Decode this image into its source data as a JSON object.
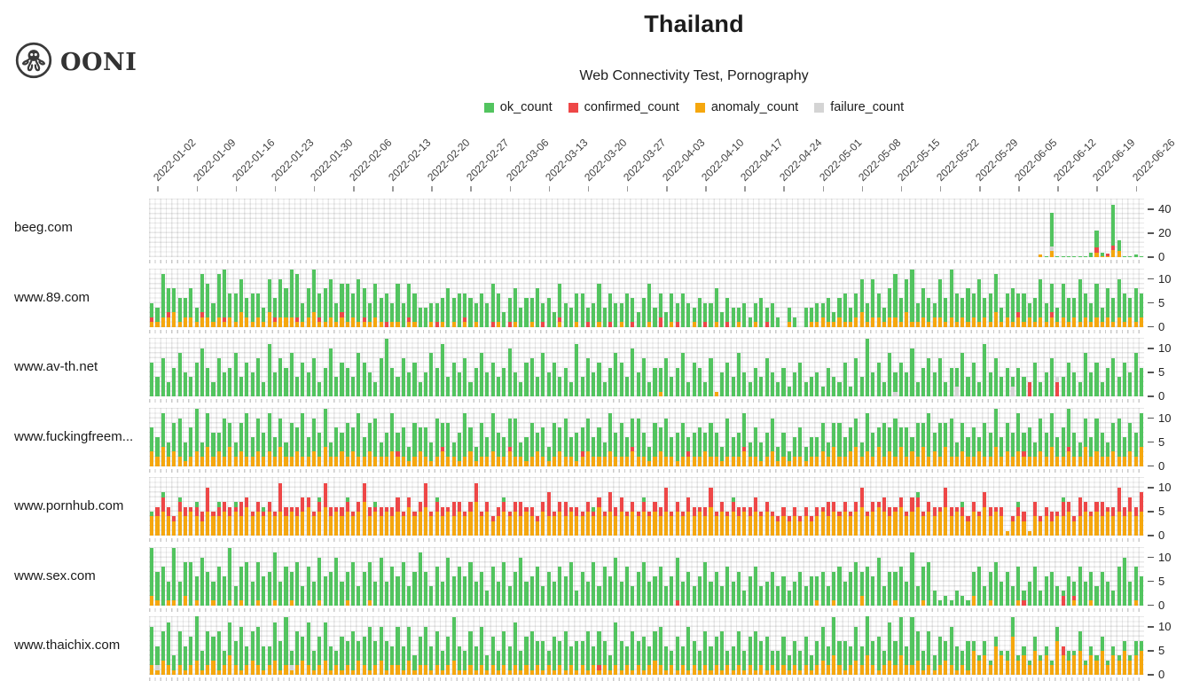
{
  "brand": {
    "logo_text": "OONI"
  },
  "header": {
    "title": "Thailand",
    "subtitle": "Web Connectivity Test, Pornography"
  },
  "legend": [
    {
      "label": "ok_count",
      "color": "#52c45f"
    },
    {
      "label": "confirmed_count",
      "color": "#ee4747"
    },
    {
      "label": "anomaly_count",
      "color": "#f5a70e"
    },
    {
      "label": "failure_count",
      "color": "#d4d4d4"
    }
  ],
  "chart_data": {
    "type": "stacked_bar",
    "title": "Thailand",
    "subtitle": "Web Connectivity Test, Pornography",
    "x_start_date": "2022-01-01",
    "x_granularity": "daily",
    "x_tick_labels": [
      "2022-01-02",
      "2022-01-09",
      "2022-01-16",
      "2022-01-23",
      "2022-01-30",
      "2022-02-06",
      "2022-02-13",
      "2022-02-20",
      "2022-02-27",
      "2022-03-06",
      "2022-03-13",
      "2022-03-20",
      "2022-03-27",
      "2022-04-03",
      "2022-04-10",
      "2022-04-17",
      "2022-04-24",
      "2022-05-01",
      "2022-05-08",
      "2022-05-15",
      "2022-05-22",
      "2022-05-29",
      "2022-06-05",
      "2022-06-12",
      "2022-06-19",
      "2022-06-26"
    ],
    "series_names": [
      "ok_count",
      "confirmed_count",
      "anomaly_count",
      "failure_count"
    ],
    "stack_order_bottom_to_top": [
      "anomaly_count",
      "confirmed_count",
      "failure_count",
      "ok_count"
    ],
    "colors": {
      "ok": "#52c45f",
      "confirmed": "#ee4747",
      "anomaly": "#f5a70e",
      "failure": "#d4d4d4"
    },
    "day_format": "per-day 'ok,confirmed,anomaly,failure' separated by ';' — empty segment = no measurements",
    "sites": [
      {
        "name": "beeg.com",
        "y_ticks": [
          0,
          20,
          40
        ],
        "offset": 159,
        "days": "0,0,2;1;28,0,5,4;1;1;1;1;1;1;4;14,4,4;3,0,1;0,2,1;34,4,6;9,0,5;1;1;2;1"
      },
      {
        "name": "www.89.com",
        "y_ticks": [
          0,
          5,
          10
        ],
        "days": "3,1,1;3,0,1;9,0,2;5,1,2;5,0,3;5,0,1;4,0,2;6,0,2;3,0,1;8,1,2;7,0,2;4,0,1;9,0,2;10,1,1;5,0,2;6,0,1;7,0,3;4,0,2;6,0,1;5,0,2;3,0,1;7,0,3;4,1,1;8,0,2;6,0,2;10,0,2;9,1,1;4,0,1;6,0,2;9,0,3;5,1,1;7,0,1;8,0,2;4,0,1;6,1,2;8,0,1;5,0,2;9,0,1;6,1,1;4,0,1;7,0,2;5,0,1;6,1;4,0,1;8,0,1;5;7,1,1;6,0,1;4;4;4,0,1;4,1;5,0,1;8;5,0,1;7;5,1,1;6;4,0,1;7;5;8,1;6,0,1;3;5,1;7,0,1;4;6;5,0,1;8;4,1;6;3;7,1,1;5;4;6,0,1;7;3,1;5;8,0,1;4;6,1;5;4,0,1;7;5,1;3;6;8,0,1;4;5,2;3;6,0,1;4,1;7;5;3,0,1;6;4,1;5;7,0,1;3;5,1;4;3,0,1;5;2;4,0,1;6;3,1;5;2;;3,0,1;2;;4;3,0,1;4,0,1;3,0,2;5,0,1;2,0,1;4,0,2;6,0,1;3,0,1;5,0,2;7,0,3;4,0,1;8,0,2;5,0,2;3,0,1;6,0,2;9,0,2;5,0,1;7,0,3;11,0,1;4,0,1;6,0,2;5,0,1;3,0,2;8,0,2;5,0,1;10,0,2;6,0,1;4,0,2;7,0,1;5,0,2;9,0,1;4,0,2;6,0,1;8,0,3;3,0,1;5,0,2;7,0,1;4,1,2;6,0,1;3,0,2;5,0,1;8,0,2;4,0,1;6,1,2;3,0,1;7,0,2;5,0,1;4,0,2;9,0,1;5,0,2;4,0,1;7,0,2;3,0,1;6,0,2;5,0,1;8,0,2;6,0,1;4,0,2;7,0,1;5,0,2"
      },
      {
        "name": "www.av-th.net",
        "y_ticks": [
          0,
          5,
          10
        ],
        "days": "7;4;8;3;6;9;5;4;7;10;6;3;8;5;6;9;4;7;5;8;3;11;5;8;6;9;4;7;5;8;3;6;10;4;7;6;4;9;7;5;3;8;12;6;4;8;5;7;3;5;9;6;11;4;7;5;8;3;6;9;5;7;4;6;10;5;3;7;8;4;9;5;7;4;6;3;11;4;8;5;7;3;6;9;7;4;10;5;8;3;6;5,0,1;8;4;6;9;3;7;6;3;8;0,0,1;5;7;4;9;5;3;6;4;8;5;3;6;2;5;7;3;4;5;2;6;4;3;7;2;8;4;12;5;7;3;9;4,0,0,1;7;5;10;3;6;8;5;8;3;6;4,0,0,2;9;4;7;3;11;5;8;4;6;2,0,0,2;6;4;0,3;7;3;5;8;0,3,0,1;4;7;5;3;9;5;7;3;6;8;4;7;5;9;6"
      },
      {
        "name": "www.fuckingfreem...",
        "y_ticks": [
          0,
          5,
          10
        ],
        "days": "5,0,3;4,0,2;7,0,4;3,0,2;6,0,3;8,0,2;4,0,1;6,0,2;9,0,3;3,0,2;7,0,4;5,0,2;4,0,3;8,0,2;5,0,4;3,0,2;6,0,3;9,0,2;4,0,2;7,0,3;5,0,2;8,0,3;4,0,2;6,0,4;3,0,2;7,0,2;5,0,3;9,0,2;4,0,2;7,0,3;5,0,2;8,0,4;3,0,2;6,0,2;4,0,3;7,0,2;5,0,3;9,0,2;4,0,2;6,0,3;8,0,2;3,0,2;5,0,2;8,0,3;4,1,2;6,0,2;3,0,1;7,0,2;5,0,3;6,0,2;4,0,1;8,0,2;5,1,3;7,0,2;3,0,2;6,0,1;9,0,2;5,0,3;3,0,1;7,0,2;4,0,2;8,0,3;5,0,2;4,0,2;6,1,3;8,0,2;3,0,2;5,0,1;7,0,2;4,0,3;6,0,2;3,0,1;7,0,2;5,0,3;8,0,2;4,0,2;6,0,1;5,1,2;7,0,3;4,0,2;6,0,2;3,0,2;8,0,3;5,0,2;7,0,2;4,0,2;6,1,3;8,0,2;5,0,2;3,0,1;7,0,2;5,0,3;8,0,2;4,0,2;6,0,1;7,0,2;3,1,2;5,0,2;6,0,2;4,0,3;7,0,2;5,0,2;3,0,1;8,0,2;4,0,2;5,0,2;7,1,3;3,0,2;6,0,2;4,0,1;5,0,2;7,0,3;3,0,1;5,0,2;2,0,1;4,0,2;6,0,2;3,0,1;4,0,2;4,0,2;6,0,3;3,0,2;5,0,4;7,0,2;4,0,2;5,0,3;6,0,4;3,0,2;8,0,3;5,0,2;4,0,4;7,0,2;5,0,3;8,0,2;4,0,4;6,0,2;3,0,3;7,0,2;5,0,4;9,0,2;4,0,3;7,0,2;5,0,4;8,0,2;3,0,2;6,0,3;4,0,2;6,0,2;3,0,3;7,0,2;5,0,2;8,0,4;4,0,2;6,0,3;5,0,2;8,0,3;4,1,2;6,0,2;3,0,2;7,0,3;5,0,2;7,0,4;4,0,2;6,0,2;8,1,3;5,0,2;3,0,2;6,0,4;4,0,2;7,0,3;5,0,2;3,0,2;6,0,3;8,0,2;4,0,2;6,0,3;5,0,2;7,0,4"
      },
      {
        "name": "www.pornhub.com",
        "y_ticks": [
          0,
          5,
          10
        ],
        "days": "1,0,4;0,2,4;1,3,5;0,2,4;0,1,3;1,2,5;0,2,4;0,1,5;1,2,4;0,2,3;0,5,5;0,1,4;1,2,4;0,2,5;0,2,4;1,1,5;0,3,4;0,2,6;0,1,4;0,2,5;1,1,4;0,2,5;0,1,4;0,6,5;0,2,4;0,1,5;0,2,4;0,3,5;0,2,6;0,1,4;1,2,5;0,5,6;0,2,4;0,1,5;0,2,4;1,2,5;0,1,4;0,2,5;0,4,7;0,2,4;1,1,5;0,2,4;0,1,5;0,2,4;0,3,5;0,1,4;0,2,6;0,1,4;0,2,5;0,5,6;0,1,4;1,2,5;0,2,4;0,1,5;0,3,4;0,2,5;0,1,4;0,2,5;0,4,7;0,1,4;0,2,5;0,1,3;0,2,4;1,2,5;0,1,4;0,2,5;0,3,4;0,1,5;0,2,4;0,1,3;0,2,5;0,5,4;0,1,4;0,2,5;0,3,4;0,1,5;0,2,4;0,1,4;0,2,5;1,1,4;0,2,6;0,1,4;0,4,5;0,2,4;0,3,5;0,1,4;0,2,5;0,1,4;1,2,5;0,1,4;0,2,5;0,2,4;0,5,5;0,1,4;0,2,5;0,1,4;0,3,5;0,2,4;0,1,5;0,2,4;0,4,6;0,1,4;0,2,5;0,1,4;1,2,5;0,2,4;0,1,5;0,2,4;0,3,5;0,1,4;0,2,5;0,1,4;0,1,3;0,2,4;0,1,3;0,2,4;0,1,3;0,2,4;0,1,3;0,2,4;0,1,5;0,3,4;0,2,5;0,1,4;0,2,5;0,1,4;0,2,5;0,4,6;0,1,4;0,2,5;0,1,6;0,3,5;0,2,4;0,1,5;0,2,6;0,1,4;0,3,5;1,2,6;0,1,4;0,2,5;0,2,4;0,1,5;0,4,6;0,2,4;0,1,5;1,2,4;0,1,3;0,2,5;0,1,4;0,3,6;0,2,4;0,1,5;0,2,4;0,0,1;0,1,3;1,2,4;0,2,3;0,0,1;0,3,4;0,1,3;0,2,4;0,2,3;0,1,4;1,3,4;0,2,5;0,1,3;0,4,4;0,2,5;0,1,4;0,2,5;0,3,4;0,1,5;0,2,4;0,5,5;0,2,4;0,3,5;0,2,4;0,4,5"
      },
      {
        "name": "www.sex.com",
        "y_ticks": [
          0,
          5,
          10
        ],
        "days": "10,0,2;6,0,1;8;4,0,1;11,0,1;5;7,0,2;9;5,0,1;10;7;4,0,1;8;6;11,0,1;4;7,0,1;9;5;8,0,1;6;7;10,0,1;5;8;6,0,1;9;4;8;5;9,0,1;6;7;10;5;6,0,1;9;4;7;8,0,1;5;10;5;8;6;9;4;7;11;7;4;8;5;10;6;8;6;9;5;7;3;8;5;9;4;7;10;5;6;8;4;7;5;8;6;9;3;7;5;9;4;8;6;10;5;8;4;7;9;5;6;8;4;6;9,1;5;7;4;6;9;5;7;4;8;5;7;3;6;8;4;5;7;4;6;3;5;7;4;6;5,0,1;7;4;6,0,1;8;5;7;9;5,0,2;8;6;10;4;7;6,0,1;8;5;11;4;7,0,1;9;3;1;2;1;3;2;1;5,0,2;8;4;6,0,1;9;5;7;4;7,0,1;2,1;5;8;3;6;7;4;1,2;6;3,1,1;8;5;6,0,1;4;7;5;3;8;10;5;7,0,1;6"
      },
      {
        "name": "www.thaichix.com",
        "y_ticks": [
          0,
          5,
          10
        ],
        "days": "8,0,2;4,0,1,1;6,0,3;9,0,2;3,0,1;7,0,2;5,0,1;6,0,2;10,0,3;4,0,1;7,0,2;5,0,3;8,0,1;3,0,2;7,0,4;5,0,2;9,0,1;4,0,2;6,0,3;8,0,2;5,0,1;4,0,2;8,0,3;6,0,1;10,0,2;3,0,1,1;7,0,2;5,0,3;9,0,2;4,0,1;6,0,2;8,0,3;5,0,1;3,0,2;7,0,1;5,0,2;8,0,1;4,0,3;6,0,2;9,0,1;5,0,2;7,0,3;6,0,1;4,0,2;8,0,2;5,0,1;7,0,3;3,0,1;6,0,2;8,0,2;5,0,1;7,0,2;4,0,1;6,0,2;9,0,3;5,0,1;4,0,1;7,0,2;5,0,1;8,0,2;3,0,1;6,0,2;4,0,1;7,0,2;5,0,1;9,0,2;4,0,1;6,0,2;8,0,1;5,0,2;6,0,1;3,0,2;7,0,1;5,0,2;8,0,1;4,0,2;6,0,1;5,0,2;8,0,1;4,0,2;7,1,1;5,0,2;3,0,1;9,0,2;6,0,1;4,0,2;8,0,1;5,0,2;7,0,1;4,0,2;6,0,3;8,0,2;5,0,1;3,0,2;7,0,1;4,0,2;9,0,1;5,0,2;4,0,1;7,0,2;5,0,1;6,0,2;8,0,1;3,0,2;5,0,1;7,0,2;4,0,1;6,0,2;8,0,1;5,0,2;7,0,1;3,0,2;4,0,1;6,0,2;3,0,1;5,0,2;4,0,1;6,0,2;3,0,1;5,0,2;7,0,3;4,0,2;8,0,4;5,0,2;6,0,1;4,0,2;7,0,3;4,0,2;9,0,4;5,0,2;7,0,1;3,0,2;8,0,3;5,0,2;8,0,4;4,0,2;10,0,2;6,0,3;4,0,1;7,0,2;3,0,1;6,0,2;4,0,3;8,0,2;5,0,1;3,0,2;6,0,1;2,0,5;1,0,3;3,0,4;1,0,2;2,0,6;1,0,4;2,0,3;4,0,8;1,0,3;2,0,4;1,0,2;3,0,5;1,0,3;2,0,4;1,0,2;3,0,7;0,2,4;2,0,3;1,0,4;4,0,5;1,0,2;2,0,4;1,0,3;3,0,5;1,0,2;2,0,4;1,0,3;2,0,5;1,0,3;3,0,4;2,0,5"
      }
    ]
  }
}
